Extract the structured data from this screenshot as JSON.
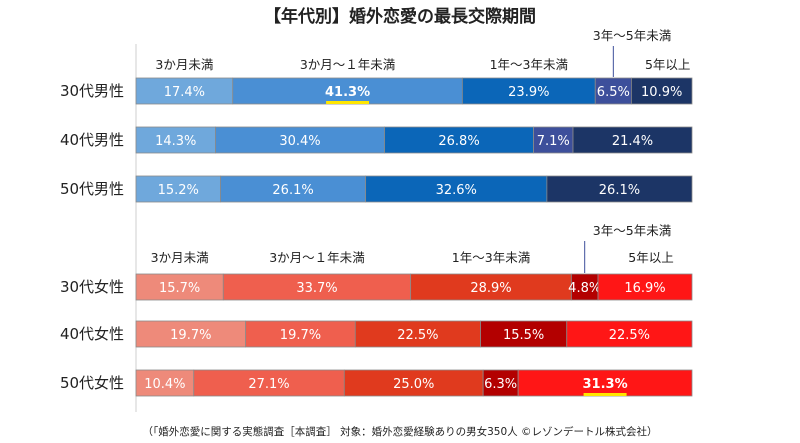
{
  "title": "【年代別】婚外恋愛の最長交際期間",
  "footnote": "（「婚外恋愛に関する実態調査［本調査］ 対象：婚外恋愛経験ありの男女350人 ©レゾンデートル株式会社）",
  "chart_data": [
    {
      "type": "bar",
      "orientation": "horizontal",
      "stacked": "percent",
      "group": "male",
      "categories": [
        "30代男性",
        "40代男性",
        "50代男性"
      ],
      "segment_labels": [
        "3か月未満",
        "3か月～１年未満",
        "1年～3年未満",
        "3年～5年未満",
        "5年以上"
      ],
      "colors": [
        "#6fa8dc",
        "#4a8fd4",
        "#0b66b8",
        "#3d4f9b",
        "#1c3566"
      ],
      "series": [
        {
          "name": "3か月未満",
          "values": [
            17.4,
            14.3,
            15.2
          ]
        },
        {
          "name": "3か月～１年未満",
          "values": [
            41.3,
            30.4,
            26.1
          ]
        },
        {
          "name": "1年～3年未満",
          "values": [
            23.9,
            26.8,
            32.6
          ]
        },
        {
          "name": "3年～5年未満",
          "values": [
            6.5,
            7.1,
            0
          ]
        },
        {
          "name": "5年以上",
          "values": [
            10.9,
            21.4,
            26.1
          ]
        }
      ],
      "labels": [
        [
          "17.4%",
          "41.3%",
          "23.9%",
          "6.5%",
          "10.9%"
        ],
        [
          "14.3%",
          "30.4%",
          "26.8%",
          "7.1%",
          "21.4%"
        ],
        [
          "15.2%",
          "26.1%",
          "32.6%",
          "",
          "26.1%"
        ]
      ],
      "highlight": [
        {
          "row": 0,
          "segment": 1
        }
      ]
    },
    {
      "type": "bar",
      "orientation": "horizontal",
      "stacked": "percent",
      "group": "female",
      "categories": [
        "30代女性",
        "40代女性",
        "50代女性"
      ],
      "segment_labels": [
        "3か月未満",
        "3か月～１年未満",
        "1年～3年未満",
        "3年～5年未満",
        "5年以上"
      ],
      "colors": [
        "#ee8a7a",
        "#ef5f4e",
        "#e03a1e",
        "#b30000",
        "#ff1616"
      ],
      "series": [
        {
          "name": "3か月未満",
          "values": [
            15.7,
            19.7,
            10.4
          ]
        },
        {
          "name": "3か月～１年未満",
          "values": [
            33.7,
            19.7,
            27.1
          ]
        },
        {
          "name": "1年～3年未満",
          "values": [
            28.9,
            22.5,
            25.0
          ]
        },
        {
          "name": "3年～5年未満",
          "values": [
            4.8,
            15.5,
            6.3
          ]
        },
        {
          "name": "5年以上",
          "values": [
            16.9,
            22.5,
            31.3
          ]
        }
      ],
      "labels": [
        [
          "15.7%",
          "33.7%",
          "28.9%",
          "4.8%",
          "16.9%"
        ],
        [
          "19.7%",
          "19.7%",
          "22.5%",
          "15.5%",
          "22.5%"
        ],
        [
          "10.4%",
          "27.1%",
          "25.0%",
          "6.3%",
          "31.3%"
        ]
      ],
      "highlight": [
        {
          "row": 2,
          "segment": 4
        }
      ]
    }
  ]
}
